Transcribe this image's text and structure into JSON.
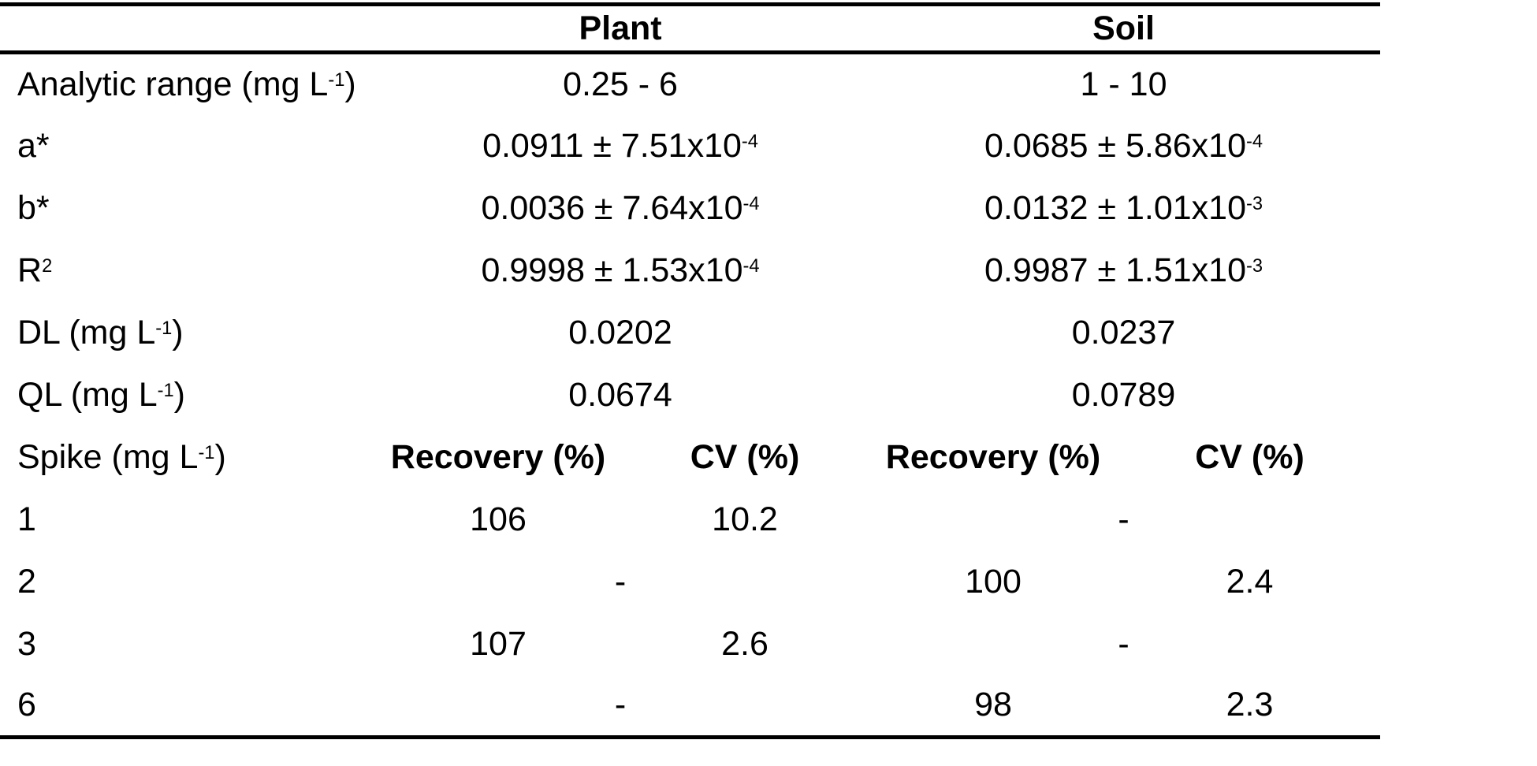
{
  "table": {
    "header": {
      "plant": "Plant",
      "soil": "Soil"
    },
    "param_rows": [
      {
        "label": {
          "pre": "Analytic range (mg L",
          "sup": "-1",
          "post": ")"
        },
        "plant": {
          "pre": "0.25 - 6"
        },
        "soil": {
          "pre": "1 - 10"
        }
      },
      {
        "label": {
          "pre": "a*"
        },
        "plant": {
          "pre": "0.0911 ± 7.51x10",
          "sup": "-4"
        },
        "soil": {
          "pre": "0.0685 ± 5.86x10",
          "sup": "-4"
        }
      },
      {
        "label": {
          "pre": "b*"
        },
        "plant": {
          "pre": "0.0036 ± 7.64x10",
          "sup": "-4"
        },
        "soil": {
          "pre": "0.0132 ± 1.01x10",
          "sup": "-3"
        }
      },
      {
        "label": {
          "pre": "R",
          "sup": "2"
        },
        "plant": {
          "pre": "0.9998 ± 1.53x10",
          "sup": "-4"
        },
        "soil": {
          "pre": "0.9987 ± 1.51x10",
          "sup": "-3"
        }
      },
      {
        "label": {
          "pre": "DL (mg L",
          "sup": "-1",
          "post": ")"
        },
        "plant": {
          "pre": "0.0202"
        },
        "soil": {
          "pre": "0.0237"
        }
      },
      {
        "label": {
          "pre": "QL (mg L",
          "sup": "-1",
          "post": ")"
        },
        "plant": {
          "pre": "0.0674"
        },
        "soil": {
          "pre": "0.0789"
        }
      }
    ],
    "spike_header": {
      "label": {
        "pre": "Spike (mg L",
        "sup": "-1",
        "post": ")"
      },
      "cols": [
        "Recovery (%)",
        "CV (%)",
        "Recovery (%)",
        "CV (%)"
      ]
    },
    "spike_rows": [
      {
        "spike": "1",
        "plant_recovery": "106",
        "plant_cv": "10.2",
        "soil": "-"
      },
      {
        "spike": "2",
        "plant": "-",
        "soil_recovery": "100",
        "soil_cv": "2.4"
      },
      {
        "spike": "3",
        "plant_recovery": "107",
        "plant_cv": "2.6",
        "soil": "-"
      },
      {
        "spike": "6",
        "plant": "-",
        "soil_recovery": "98",
        "soil_cv": "2.3"
      }
    ]
  }
}
